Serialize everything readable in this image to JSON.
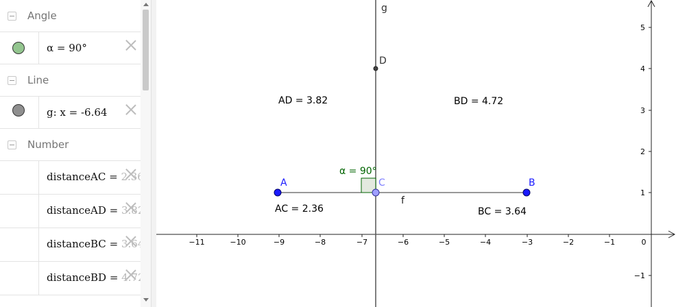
{
  "algebra": {
    "groups": [
      {
        "title": "Angle",
        "items": [
          {
            "label": "α = 90°",
            "color": "#93c58f"
          }
        ]
      },
      {
        "title": "Line",
        "items": [
          {
            "label": "g: x = -6.64",
            "color": "#8f8f8f"
          }
        ]
      },
      {
        "title": "Number",
        "items": [
          {
            "name": "distanceAC",
            "eq": " = ",
            "value": "2.36"
          },
          {
            "name": "distanceAD",
            "eq": " = ",
            "value": "3.82"
          },
          {
            "name": "distanceBC",
            "eq": " = ",
            "value": "3.64"
          },
          {
            "name": "distanceBD",
            "eq": " = ",
            "value": "4.72"
          }
        ]
      }
    ]
  },
  "graph": {
    "x_tick_labels": [
      "−11",
      "−10",
      "−9",
      "−8",
      "−7",
      "−6",
      "−5",
      "−4",
      "−3",
      "−2",
      "−1"
    ],
    "y_tick_labels": [
      "5",
      "4",
      "3",
      "2",
      "1",
      "−1"
    ],
    "origin_label": "0",
    "points": {
      "A": {
        "label": "A",
        "x": -9,
        "y": 1,
        "color": "#1a1aff"
      },
      "B": {
        "label": "B",
        "x": -3,
        "y": 1,
        "color": "#1a1aff"
      },
      "C": {
        "label": "C",
        "x": -6.64,
        "y": 1,
        "color": "#7f7fff"
      },
      "D": {
        "label": "D",
        "x": -6.64,
        "y": 4,
        "color": "#333333"
      }
    },
    "line_g": {
      "label": "g",
      "x": -6.64
    },
    "segment_f": {
      "label": "f"
    },
    "angle_label": "α = 90°",
    "angle_color": "#006400",
    "distances": {
      "AD": "AD = 3.82",
      "BD": "BD = 4.72",
      "AC": "AC = 2.36",
      "BC": "BC = 3.64"
    }
  }
}
